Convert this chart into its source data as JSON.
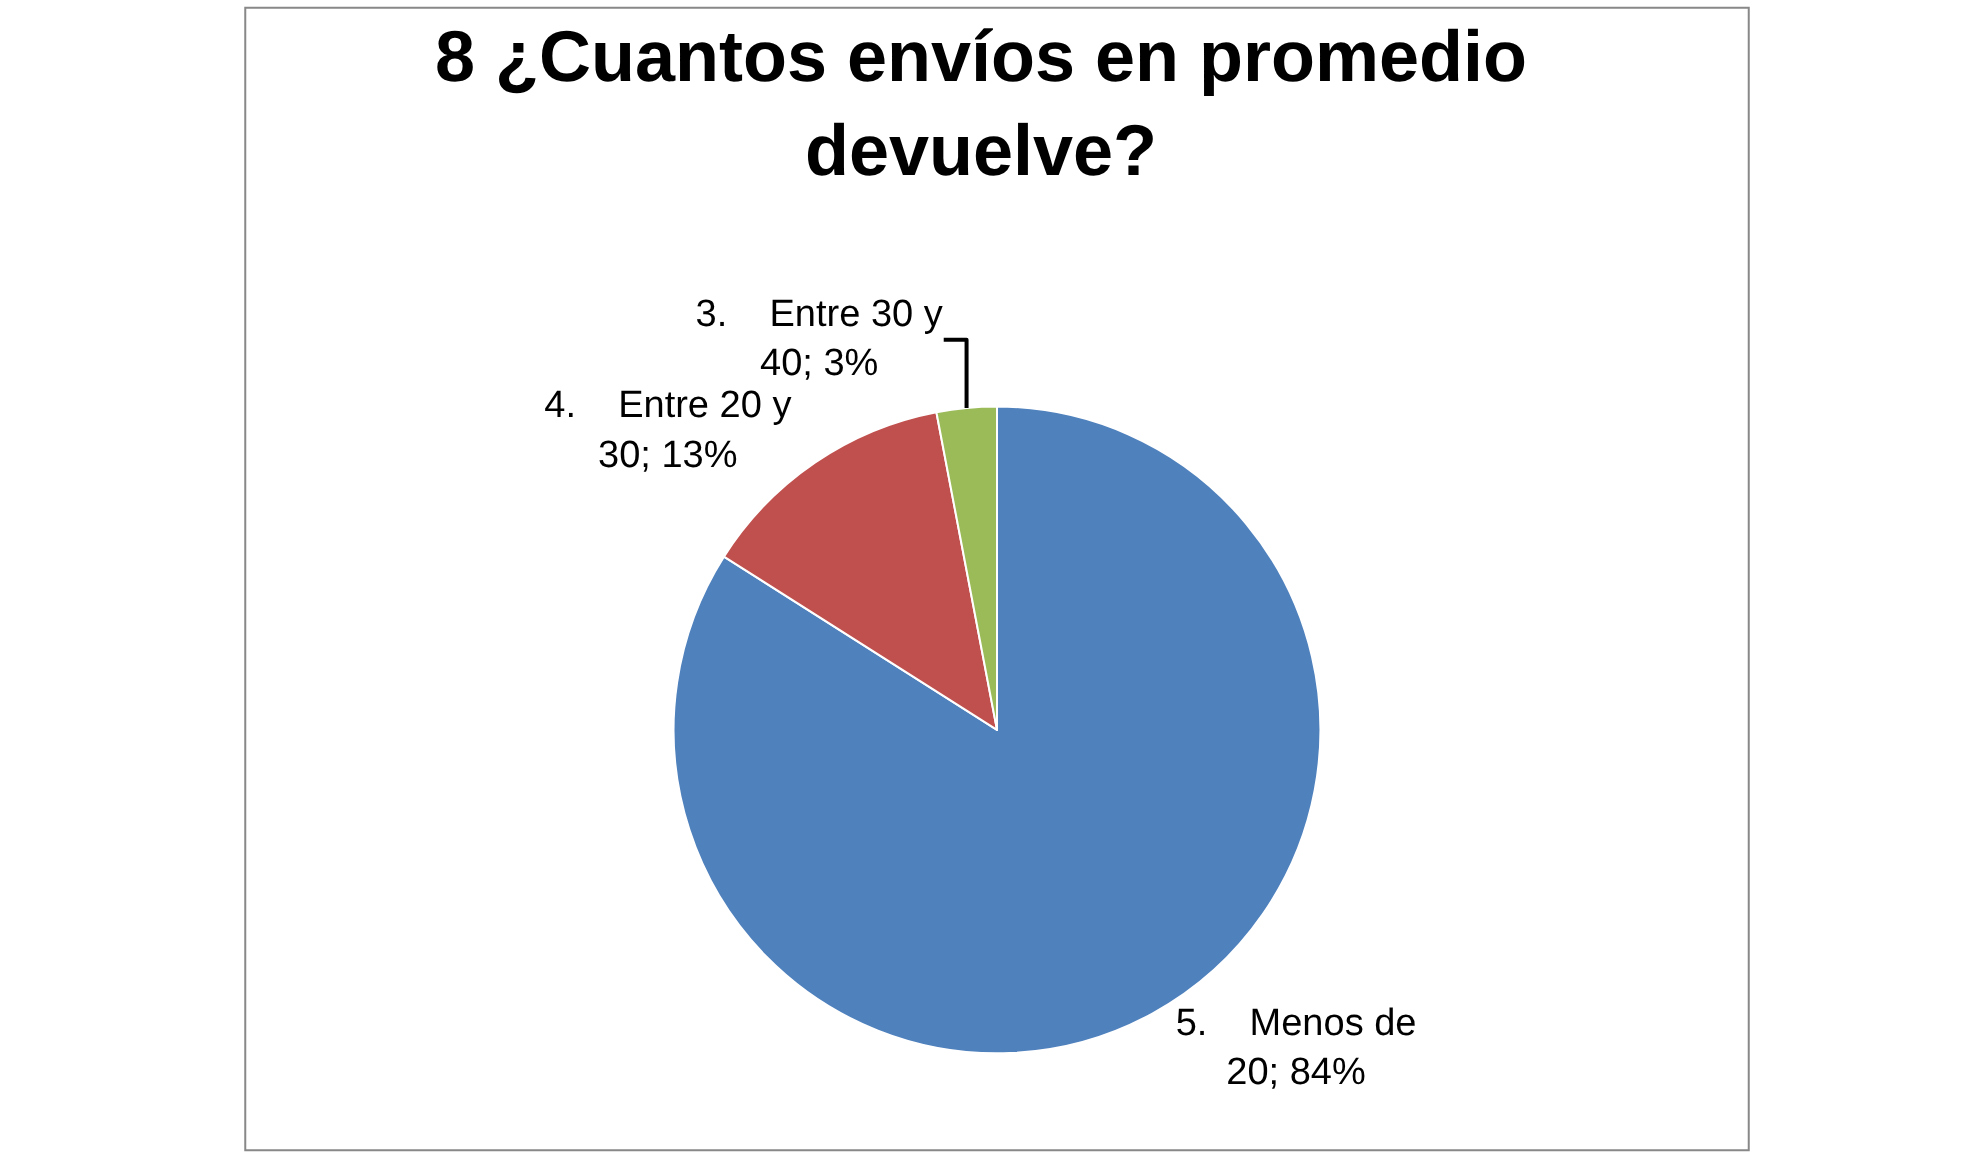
{
  "chart_data": {
    "type": "pie",
    "title": "8 ¿Cuantos envíos en promedio devuelve?",
    "categories": [
      "5.    Menos de 20",
      "4.    Entre 20 y 30",
      "3.    Entre 30 y 40"
    ],
    "values": [
      84,
      13,
      3
    ],
    "value_labels": [
      "84%",
      "13%",
      "3%"
    ],
    "colors": [
      "#4f81bd",
      "#c0504d",
      "#9bbb59"
    ],
    "data_labels": true,
    "legend": false
  }
}
